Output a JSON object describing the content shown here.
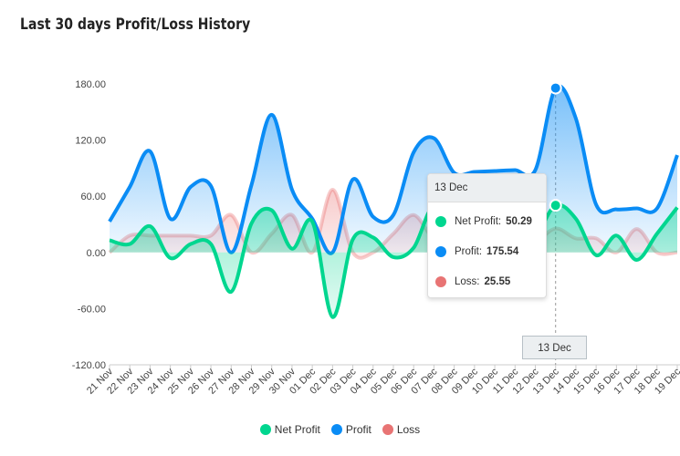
{
  "title": "Last 30 days Profit/Loss History",
  "chart_data": {
    "type": "area",
    "title": "Last 30 days Profit/Loss History",
    "xlabel": "",
    "ylabel": "",
    "ylim": [
      -120,
      180
    ],
    "yticks": [
      "180.00",
      "120.00",
      "60.00",
      "0.00",
      "-60.00",
      "-120.00"
    ],
    "ytick_values": [
      180,
      120,
      60,
      0,
      -60,
      -120
    ],
    "categories": [
      "21 Nov",
      "22 Nov",
      "23 Nov",
      "24 Nov",
      "25 Nov",
      "26 Nov",
      "27 Nov",
      "28 Nov",
      "29 Nov",
      "30 Nov",
      "01 Dec",
      "02 Dec",
      "03 Dec",
      "04 Dec",
      "05 Dec",
      "06 Dec",
      "07 Dec",
      "08 Dec",
      "09 Dec",
      "10 Dec",
      "11 Dec",
      "12 Dec",
      "13 Dec",
      "14 Dec",
      "15 Dec",
      "16 Dec",
      "17 Dec",
      "18 Dec",
      "19 Dec"
    ],
    "series": [
      {
        "name": "Net Profit",
        "color": "#00d68f",
        "values": [
          13,
          9,
          28,
          -6,
          9,
          9,
          -42,
          31,
          45,
          4,
          33,
          -69,
          14,
          16,
          -5,
          5,
          49,
          7,
          0,
          9,
          10,
          17,
          50.29,
          36,
          -3,
          18,
          -8,
          20,
          48
        ]
      },
      {
        "name": "Profit",
        "color": "#0a8cf5",
        "values": [
          33,
          70,
          108,
          36,
          70,
          71,
          0,
          72,
          147,
          67,
          36,
          0,
          78,
          38,
          40,
          107,
          122,
          85,
          86,
          87,
          88,
          88,
          175.54,
          143,
          51,
          46,
          47,
          47,
          104
        ]
      },
      {
        "name": "Loss",
        "color": "#e86a6a",
        "values": [
          0,
          18,
          18,
          18,
          18,
          18,
          40,
          0,
          20,
          40,
          0,
          67,
          0,
          0,
          20,
          40,
          15,
          18,
          0,
          10,
          0,
          10,
          25.55,
          15,
          15,
          0,
          25,
          0,
          0
        ]
      }
    ],
    "legend": "bottom",
    "grid": false
  },
  "tooltip": {
    "date": "13 Dec",
    "rows": [
      {
        "label": "Net Profit:",
        "value": "50.29",
        "color": "#00d68f"
      },
      {
        "label": "Profit:",
        "value": "175.54",
        "color": "#0a8cf5"
      },
      {
        "label": "Loss:",
        "value": "25.55",
        "color": "#e87474"
      }
    ]
  },
  "crosshair_label": "13 Dec",
  "legend": [
    {
      "label": "Net Profit",
      "color": "#00d68f"
    },
    {
      "label": "Profit",
      "color": "#0a8cf5"
    },
    {
      "label": "Loss",
      "color": "#e87474"
    }
  ]
}
